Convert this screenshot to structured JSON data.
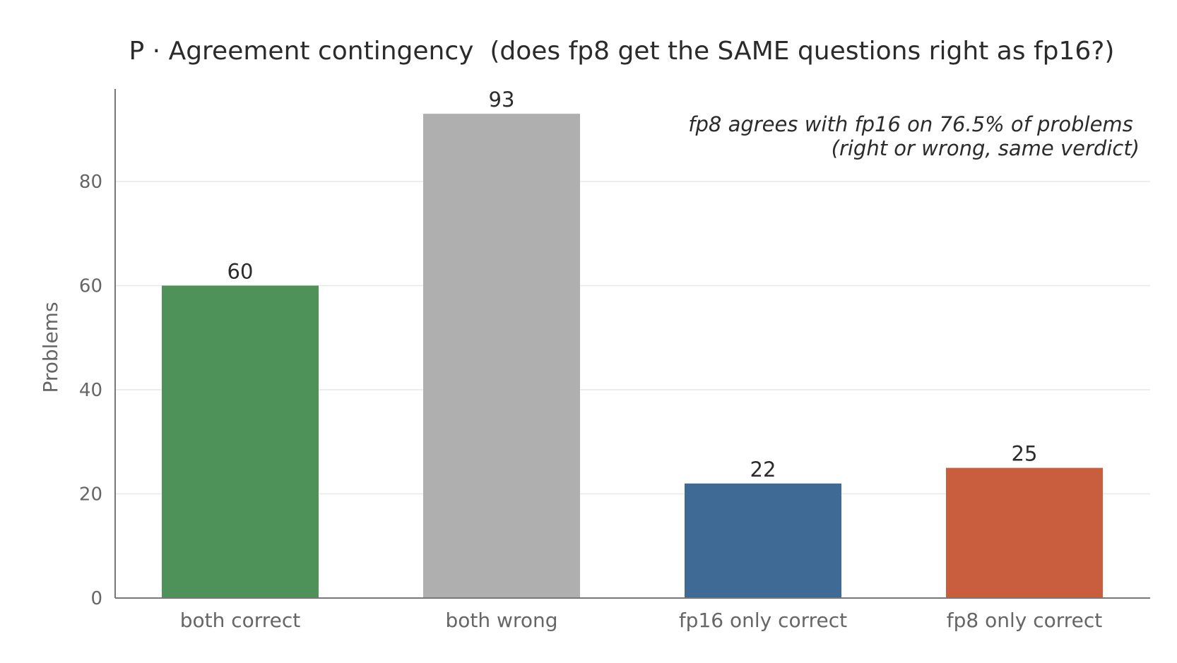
{
  "chart_data": {
    "type": "bar",
    "title": "P · Agreement contingency  (does fp8 get the SAME questions right as fp16?)",
    "annotation_lines": [
      "fp8 agrees with fp16 on 76.5% of problems",
      "(right or wrong, same verdict)"
    ],
    "xlabel": "",
    "ylabel": "Problems",
    "categories": [
      "both correct",
      "both wrong",
      "fp16 only correct",
      "fp8 only correct"
    ],
    "values": [
      60,
      93,
      22,
      25
    ],
    "data_labels": [
      "60",
      "93",
      "22",
      "25"
    ],
    "colors": [
      "#4e9259",
      "#afafaf",
      "#3f6a96",
      "#c95e3e"
    ],
    "ylim": [
      0,
      97
    ],
    "yticks": [
      0,
      20,
      40,
      60,
      80
    ],
    "grid": true,
    "legend": "none"
  }
}
